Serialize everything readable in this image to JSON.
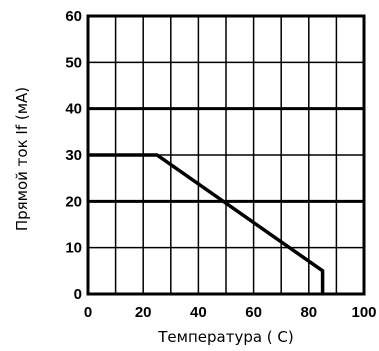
{
  "chart_data": {
    "type": "line",
    "xlabel": "Температура ( С)",
    "ylabel": "Прямой ток If (мА)",
    "xlim": [
      0,
      100
    ],
    "ylim": [
      0,
      60
    ],
    "x_ticks": [
      "0",
      "20",
      "40",
      "60",
      "80",
      "100"
    ],
    "y_ticks": [
      "0",
      "10",
      "20",
      "30",
      "40",
      "50",
      "60"
    ],
    "grid": true,
    "minor_grid_x_step": 10,
    "minor_grid_y_step": 10,
    "major_grid_y": [
      20,
      40
    ],
    "series": [
      {
        "x": [
          0,
          25,
          85,
          85
        ],
        "y": [
          30,
          30,
          5,
          0
        ],
        "color": "#000000"
      }
    ]
  }
}
